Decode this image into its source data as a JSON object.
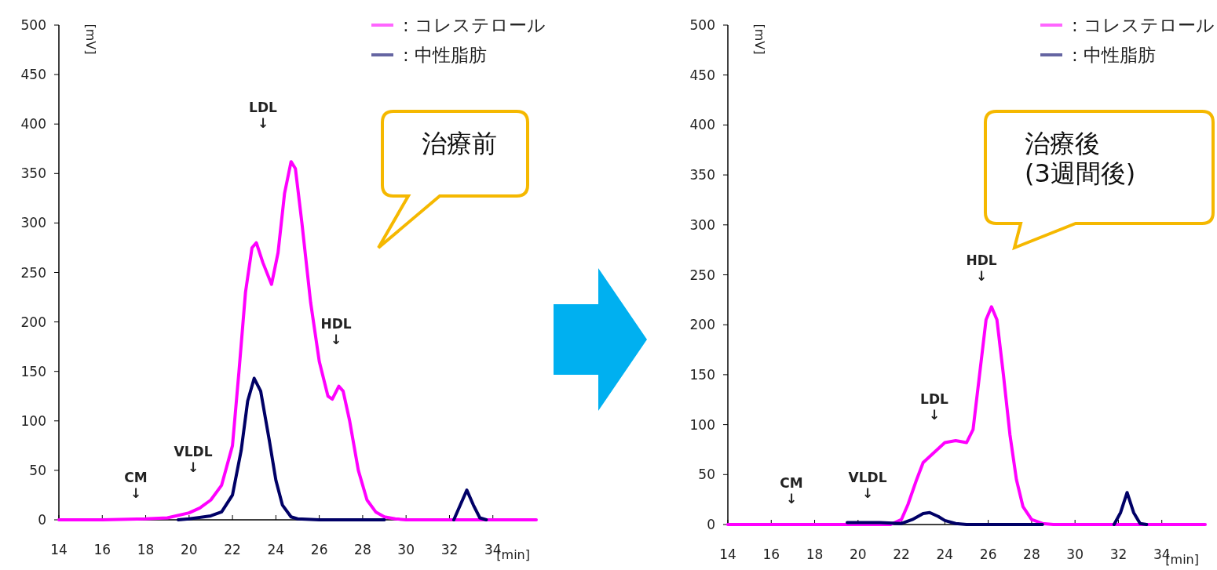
{
  "chart_data": [
    {
      "type": "line",
      "xlim": [
        14,
        36
      ],
      "xticks": [
        14,
        16,
        18,
        20,
        22,
        24,
        26,
        28,
        30,
        32,
        34
      ],
      "ylim": [
        0,
        500
      ],
      "yticks": [
        0,
        50,
        100,
        150,
        200,
        250,
        300,
        350,
        400,
        450,
        500
      ],
      "xlabel": "[min]",
      "ylabel": "[mV]",
      "grid": false,
      "legend": "top right",
      "marker": "none",
      "line_style": "solid",
      "series": [
        {
          "name": ": コレステロール",
          "color": "#ff00ff",
          "x": [
            14,
            16,
            18,
            19,
            20,
            20.5,
            21,
            21.5,
            22,
            22.3,
            22.6,
            22.9,
            23.1,
            23.4,
            23.8,
            24.1,
            24.4,
            24.7,
            24.9,
            25.2,
            25.6,
            26,
            26.4,
            26.6,
            26.9,
            27.1,
            27.4,
            27.8,
            28.2,
            28.6,
            29,
            29.5,
            30,
            36
          ],
          "values": [
            0,
            0,
            1,
            2,
            7,
            12,
            20,
            35,
            75,
            150,
            230,
            275,
            280,
            260,
            238,
            270,
            330,
            362,
            355,
            300,
            220,
            160,
            125,
            122,
            135,
            130,
            100,
            50,
            20,
            8,
            3,
            1,
            0,
            0
          ]
        },
        {
          "name": ": 中性脂肪",
          "color": "#000066",
          "x": [
            19.5,
            20,
            21,
            21.5,
            22,
            22.4,
            22.7,
            23,
            23.3,
            23.7,
            24,
            24.3,
            24.7,
            25,
            26,
            29,
            31,
            32.2,
            32.5,
            32.8,
            33.1,
            33.4,
            33.7
          ],
          "values": [
            0,
            1,
            4,
            8,
            25,
            70,
            120,
            143,
            130,
            80,
            40,
            15,
            3,
            1,
            0,
            0,
            null,
            0,
            15,
            30,
            15,
            2,
            0
          ]
        }
      ],
      "annotations": [
        "CM\n↓",
        "VLDL\n↓",
        "LDL\n↓",
        "HDL\n↓",
        "治療前"
      ]
    },
    {
      "type": "line",
      "xlim": [
        14,
        36
      ],
      "xticks": [
        14,
        16,
        18,
        20,
        22,
        24,
        26,
        28,
        30,
        32,
        34
      ],
      "ylim": [
        0,
        500
      ],
      "yticks": [
        0,
        50,
        100,
        150,
        200,
        250,
        300,
        350,
        400,
        450,
        500
      ],
      "xlabel": "[min]",
      "ylabel": "[mV]",
      "grid": false,
      "legend": "top right",
      "marker": "none",
      "line_style": "solid",
      "series": [
        {
          "name": ": コレステロール",
          "color": "#ff00ff",
          "x": [
            14,
            18,
            21.5,
            22,
            22.3,
            22.7,
            23,
            23.5,
            24,
            24.5,
            25,
            25.3,
            25.6,
            25.9,
            26.15,
            26.4,
            26.7,
            27,
            27.3,
            27.6,
            28,
            28.5,
            29,
            36
          ],
          "values": [
            0,
            0,
            0,
            5,
            20,
            45,
            62,
            72,
            82,
            84,
            82,
            95,
            150,
            205,
            218,
            205,
            150,
            90,
            45,
            18,
            5,
            1,
            0,
            0
          ]
        },
        {
          "name": ": 中性脂肪",
          "color": "#000066",
          "x": [
            19.5,
            21,
            22,
            22.5,
            23,
            23.3,
            23.7,
            24,
            24.5,
            25,
            28.5,
            30,
            31.8,
            32.1,
            32.4,
            32.7,
            33,
            33.3
          ],
          "values": [
            2,
            2,
            1,
            5,
            11,
            12,
            8,
            4,
            1,
            0,
            0,
            null,
            0,
            12,
            32,
            12,
            1,
            0
          ]
        }
      ],
      "annotations": [
        "CM\n↓",
        "VLDL\n↓",
        "LDL\n↓",
        "HDL\n↓",
        "治療後\n(3週間後)"
      ]
    }
  ]
}
